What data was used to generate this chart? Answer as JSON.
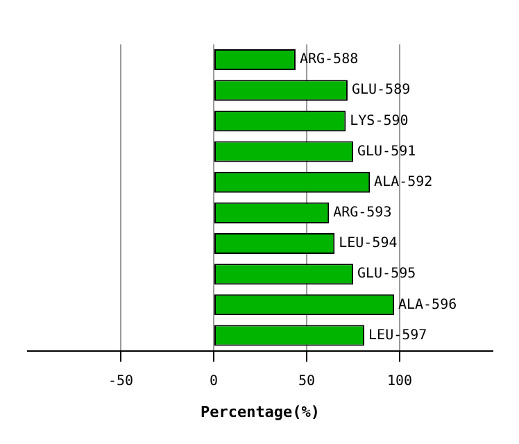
{
  "chart_data": {
    "type": "bar",
    "orientation": "horizontal",
    "xlabel": "Percentage(%)",
    "categories": [
      "ARG-588",
      "GLU-589",
      "LYS-590",
      "GLU-591",
      "ALA-592",
      "ARG-593",
      "LEU-594",
      "GLU-595",
      "ALA-596",
      "LEU-597"
    ],
    "values": [
      44,
      72,
      71,
      75,
      84,
      62,
      65,
      75,
      97,
      81
    ],
    "color": "#00b400",
    "xlim": [
      -100,
      150
    ],
    "xticks": [
      -50,
      0,
      50,
      100
    ],
    "grid": "x"
  }
}
